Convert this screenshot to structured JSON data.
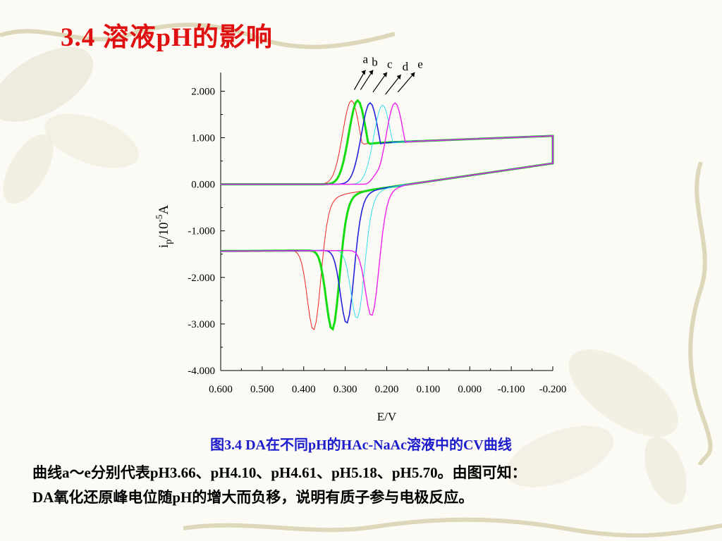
{
  "slide": {
    "title": "3.4  溶液pH的影响",
    "caption": "图3.4  DA在不同pH的HAc-NaAc溶液中的CV曲线",
    "description_lines": [
      "曲线a～e分别代表pH3.66、pH4.10、pH4.61、pH5.18、pH5.70。由图可知：",
      "DA氧化还原峰电位随pH的增大而负移，说明有质子参与电极反应。"
    ]
  },
  "chart_data": {
    "type": "line",
    "xlabel": "E/V",
    "ylabel": "ip/10⁻⁵A",
    "xlim": [
      0.6,
      -0.2
    ],
    "ylim": [
      -4.0,
      2.4
    ],
    "x_reversed": true,
    "grid": false,
    "x_ticks": [
      "0.600",
      "0.500",
      "0.400",
      "0.300",
      "0.200",
      "0.100",
      "0.000",
      "-0.100",
      "-0.200"
    ],
    "y_ticks": [
      "2.000",
      "1.000",
      "0.000",
      "-1.000",
      "-2.000",
      "-3.000",
      "-4.000"
    ],
    "series": [
      {
        "name": "a",
        "color": "#ee2222",
        "ox_peak": {
          "E": 0.285,
          "i": 2.0
        },
        "red_peak": {
          "E": 0.375,
          "i": -3.33
        }
      },
      {
        "name": "b",
        "color": "#11dd11",
        "ox_peak": {
          "E": 0.27,
          "i": 2.0
        },
        "red_peak": {
          "E": 0.33,
          "i": -3.33
        }
      },
      {
        "name": "c",
        "color": "#2222dd",
        "ox_peak": {
          "E": 0.24,
          "i": 1.95
        },
        "red_peak": {
          "E": 0.295,
          "i": -3.2
        }
      },
      {
        "name": "d",
        "color": "#33ddee",
        "ox_peak": {
          "E": 0.21,
          "i": 1.9
        },
        "red_peak": {
          "E": 0.27,
          "i": -3.1
        }
      },
      {
        "name": "e",
        "color": "#ee22ee",
        "ox_peak": {
          "E": 0.18,
          "i": 1.95
        },
        "red_peak": {
          "E": 0.235,
          "i": -3.05
        }
      }
    ],
    "annotation": "arrows from each oxidation peak labelled a, b, c, d, e"
  }
}
